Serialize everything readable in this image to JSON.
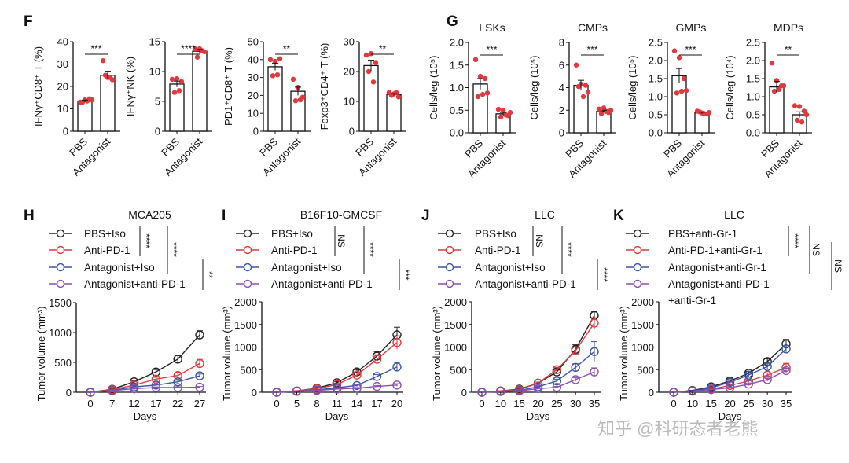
{
  "watermark": "知乎 @科研态者老熊",
  "colors": {
    "dots": "#e0393e",
    "PBS+Iso": "#222222",
    "Anti-PD-1": "#e0393e",
    "Antagonist+Iso": "#3b55a5",
    "Antagonist+anti-PD-1": "#8c4fb0"
  },
  "panels": {
    "F": "F",
    "G": "G",
    "H": "H",
    "I": "I",
    "J": "J",
    "K": "K"
  },
  "chart_data": [
    {
      "panel": "F",
      "type": "bar",
      "title": "",
      "ylabel": "IFNγ⁺CD8⁺ T (%)",
      "categories": [
        "PBS",
        "Antagonist"
      ],
      "ylim": [
        0,
        40
      ],
      "yticks": [
        0,
        10,
        20,
        30,
        40
      ],
      "values": [
        13.5,
        25
      ],
      "sem": [
        0.4,
        1.8
      ],
      "points": [
        [
          13,
          14,
          14.5,
          13,
          13.5,
          14
        ],
        [
          31.5,
          24,
          23,
          25,
          24
        ]
      ],
      "significance": "***"
    },
    {
      "panel": "F",
      "type": "bar",
      "title": "",
      "ylabel": "IFNγ⁺NK (%)",
      "categories": [
        "PBS",
        "Antagonist"
      ],
      "ylim": [
        0,
        15
      ],
      "yticks": [
        0,
        5,
        10,
        15
      ],
      "values": [
        7.9,
        13.4
      ],
      "sem": [
        0.5,
        0.3
      ],
      "points": [
        [
          8.7,
          8.8,
          8.3,
          6.5,
          6.8
        ],
        [
          13.8,
          13.8,
          13.3,
          12.4,
          13.5
        ]
      ],
      "significance": "****"
    },
    {
      "panel": "F",
      "type": "bar",
      "title": "",
      "ylabel": "PD1⁺CD8⁺ T (%)",
      "categories": [
        "PBS",
        "Antagonist"
      ],
      "ylim": [
        0,
        50
      ],
      "yticks": [
        0,
        10,
        20,
        30,
        40,
        50
      ],
      "values": [
        36,
        22.3
      ],
      "sem": [
        2,
        2.3
      ],
      "points": [
        [
          40,
          39,
          40.5,
          31,
          31.5
        ],
        [
          29,
          24.5,
          19,
          17,
          17.5
        ]
      ],
      "significance": "**"
    },
    {
      "panel": "F",
      "type": "bar",
      "title": "",
      "ylabel": "Foxp3⁺CD4⁺ T (%)",
      "categories": [
        "PBS",
        "Antagonist"
      ],
      "ylim": [
        0,
        30
      ],
      "yticks": [
        0,
        10,
        20,
        30
      ],
      "values": [
        22,
        12.3
      ],
      "sem": [
        1.8,
        0.3
      ],
      "points": [
        [
          25.5,
          26,
          23,
          20,
          16.5
        ],
        [
          13,
          12.5,
          11.5,
          12,
          13
        ]
      ],
      "significance": "**"
    },
    {
      "panel": "G",
      "type": "bar",
      "title": "LSKs",
      "ylabel": "Cells/leg (10⁵)",
      "categories": [
        "PBS",
        "Antagonist"
      ],
      "ylim": [
        0,
        2
      ],
      "yticks": [
        "0.0",
        "0.5",
        "1.0",
        "1.5",
        "2.0"
      ],
      "values": [
        1.08,
        0.42
      ],
      "sem": [
        0.12,
        0.03
      ],
      "points": [
        [
          1.62,
          1.25,
          1.2,
          0.8,
          0.85,
          0.88
        ],
        [
          0.52,
          0.5,
          0.38,
          0.35,
          0.4,
          0.45
        ]
      ],
      "significance": "***"
    },
    {
      "panel": "G",
      "type": "bar",
      "title": "CMPs",
      "ylabel": "Cells/leg (10⁵)",
      "categories": [
        "PBS",
        "Antagonist"
      ],
      "ylim": [
        0,
        8
      ],
      "yticks": [
        0,
        2,
        4,
        6,
        8
      ],
      "values": [
        4.2,
        1.9
      ],
      "sem": [
        0.45,
        0.1
      ],
      "points": [
        [
          6,
          4.3,
          4.2,
          4.1,
          3.2,
          3.6
        ],
        [
          2.1,
          2.2,
          1.8,
          1.7,
          1.9,
          2.0
        ]
      ],
      "significance": "***"
    },
    {
      "panel": "G",
      "type": "bar",
      "title": "GMPs",
      "ylabel": "Cells/leg (10⁵)",
      "categories": [
        "PBS",
        "Antagonist"
      ],
      "ylim": [
        0,
        2.5
      ],
      "yticks": [
        "0.0",
        "0.5",
        "1.0",
        "1.5",
        "2.0",
        "2.5"
      ],
      "values": [
        1.58,
        0.55
      ],
      "sem": [
        0.2,
        0.02
      ],
      "points": [
        [
          2.27,
          2.08,
          1.5,
          1.1,
          1.15,
          1.17
        ],
        [
          0.6,
          0.55,
          0.52,
          0.58,
          0.53,
          0.56
        ]
      ],
      "significance": "***"
    },
    {
      "panel": "G",
      "type": "bar",
      "title": "MDPs",
      "ylabel": "Cells/leg (10⁴)",
      "categories": [
        "PBS",
        "Antagonist"
      ],
      "ylim": [
        0,
        2.5
      ],
      "yticks": [
        "0.0",
        "0.5",
        "1.0",
        "1.5",
        "2.0",
        "2.5"
      ],
      "values": [
        1.27,
        0.5
      ],
      "sem": [
        0.15,
        0.08
      ],
      "points": [
        [
          1.93,
          1.45,
          1.3,
          1.15,
          1.2,
          1.3
        ],
        [
          0.75,
          0.73,
          0.6,
          0.35,
          0.3,
          0.5
        ]
      ],
      "significance": "**"
    },
    {
      "panel": "H",
      "type": "line",
      "title": "MCA205",
      "xlabel": "Days",
      "ylabel": "Tumor volume (mm³)",
      "x": [
        0,
        7,
        12,
        17,
        22,
        27
      ],
      "ylim": [
        0,
        1500
      ],
      "yticks": [
        0,
        500,
        1000,
        1500
      ],
      "series": [
        {
          "name": "PBS+Iso",
          "color": "#222222",
          "values": [
            0,
            50,
            175,
            340,
            555,
            960
          ],
          "err": [
            0,
            10,
            20,
            40,
            60,
            70
          ]
        },
        {
          "name": "Anti-PD-1",
          "color": "#e0393e",
          "values": [
            0,
            45,
            120,
            220,
            280,
            480
          ],
          "err": [
            0,
            8,
            15,
            30,
            50,
            70
          ]
        },
        {
          "name": "Antagonist+Iso",
          "color": "#3b55a5",
          "values": [
            0,
            30,
            90,
            120,
            175,
            275
          ],
          "err": [
            0,
            6,
            12,
            15,
            25,
            30
          ]
        },
        {
          "name": "Antagonist+anti-PD-1",
          "color": "#8c4fb0",
          "values": [
            0,
            25,
            60,
            80,
            80,
            85
          ],
          "err": [
            0,
            5,
            10,
            10,
            12,
            12
          ]
        }
      ],
      "significance": [
        {
          "rows": [
            0,
            1
          ],
          "label": "****"
        },
        {
          "rows": [
            0,
            2
          ],
          "label": "****"
        },
        {
          "rows": [
            2,
            3
          ],
          "label": "**"
        }
      ]
    },
    {
      "panel": "I",
      "type": "line",
      "title": "B16F10-GMCSF",
      "xlabel": "Days",
      "ylabel": "Tumor volume (mm³)",
      "x": [
        0,
        5,
        8,
        11,
        14,
        17,
        20
      ],
      "ylim": [
        0,
        2000
      ],
      "yticks": [
        0,
        500,
        1000,
        1500,
        2000
      ],
      "series": [
        {
          "name": "PBS+Iso",
          "color": "#222222",
          "values": [
            0,
            30,
            90,
            210,
            450,
            800,
            1270
          ],
          "err": [
            0,
            5,
            15,
            25,
            50,
            100,
            170
          ]
        },
        {
          "name": "Anti-PD-1",
          "color": "#e0393e",
          "values": [
            0,
            30,
            80,
            170,
            380,
            730,
            1100
          ],
          "err": [
            0,
            5,
            15,
            25,
            50,
            100,
            150
          ]
        },
        {
          "name": "Antagonist+Iso",
          "color": "#3b55a5",
          "values": [
            0,
            20,
            50,
            100,
            150,
            350,
            560
          ],
          "err": [
            0,
            5,
            10,
            15,
            25,
            40,
            100
          ]
        },
        {
          "name": "Antagonist+anti-PD-1",
          "color": "#8c4fb0",
          "values": [
            0,
            20,
            40,
            70,
            90,
            130,
            160
          ],
          "err": [
            0,
            5,
            8,
            10,
            15,
            20,
            30
          ]
        }
      ],
      "significance": [
        {
          "rows": [
            0,
            1
          ],
          "label": "NS"
        },
        {
          "rows": [
            0,
            2
          ],
          "label": "****"
        },
        {
          "rows": [
            2,
            3
          ],
          "label": "***"
        }
      ]
    },
    {
      "panel": "J",
      "type": "line",
      "title": "LLC",
      "xlabel": "Days",
      "ylabel": "Tumor volume (mm³)",
      "x": [
        0,
        10,
        15,
        20,
        25,
        30,
        35
      ],
      "ylim": [
        0,
        2000
      ],
      "yticks": [
        0,
        500,
        1000,
        1500,
        2000
      ],
      "series": [
        {
          "name": "PBS+Iso",
          "color": "#222222",
          "values": [
            0,
            30,
            70,
            200,
            450,
            950,
            1700
          ],
          "err": [
            0,
            5,
            10,
            25,
            40,
            100,
            80
          ]
        },
        {
          "name": "Anti-PD-1",
          "color": "#e0393e",
          "values": [
            0,
            30,
            60,
            200,
            500,
            920,
            1530
          ],
          "err": [
            0,
            5,
            10,
            25,
            50,
            80,
            120
          ]
        },
        {
          "name": "Antagonist+Iso",
          "color": "#3b55a5",
          "values": [
            0,
            20,
            40,
            120,
            250,
            550,
            900
          ],
          "err": [
            0,
            5,
            8,
            20,
            40,
            80,
            220
          ]
        },
        {
          "name": "Antagonist+anti-PD-1",
          "color": "#8c4fb0",
          "values": [
            0,
            15,
            30,
            80,
            110,
            280,
            450
          ],
          "err": [
            0,
            5,
            5,
            15,
            20,
            40,
            90
          ]
        }
      ],
      "significance": [
        {
          "rows": [
            0,
            1
          ],
          "label": "NS"
        },
        {
          "rows": [
            0,
            2
          ],
          "label": "****"
        },
        {
          "rows": [
            2,
            3
          ],
          "label": "****"
        }
      ]
    },
    {
      "panel": "K",
      "type": "line",
      "title": "LLC",
      "xlabel": "Days",
      "ylabel": "Tumor volume (mm³)",
      "x": [
        0,
        10,
        15,
        20,
        25,
        30,
        35
      ],
      "ylim": [
        0,
        2000
      ],
      "yticks": [
        0,
        500,
        1000,
        1500,
        2000
      ],
      "series": [
        {
          "name": "PBS+anti-Gr-1",
          "color": "#222222",
          "values": [
            0,
            40,
            120,
            250,
            420,
            680,
            1070
          ],
          "err": [
            0,
            5,
            15,
            25,
            40,
            60,
            100
          ]
        },
        {
          "name": "Anti-PD-1+anti-Gr-1",
          "color": "#e0393e",
          "values": [
            0,
            30,
            70,
            150,
            250,
            380,
            550
          ],
          "err": [
            0,
            5,
            10,
            20,
            30,
            50,
            90
          ]
        },
        {
          "name": "Antagonist+anti-Gr-1",
          "color": "#3b55a5",
          "values": [
            0,
            30,
            100,
            220,
            380,
            570,
            960
          ],
          "err": [
            0,
            5,
            12,
            25,
            40,
            60,
            70
          ]
        },
        {
          "name": "Antagonist+anti-PD-1\n+anti-Gr-1",
          "color": "#8c4fb0",
          "values": [
            0,
            25,
            60,
            100,
            180,
            280,
            480
          ],
          "err": [
            0,
            5,
            8,
            15,
            25,
            35,
            50
          ]
        }
      ],
      "significance": [
        {
          "rows": [
            0,
            1
          ],
          "label": "****"
        },
        {
          "rows": [
            0,
            2
          ],
          "label": "NS"
        },
        {
          "rows": [
            1,
            3
          ],
          "label": "NS"
        }
      ]
    }
  ]
}
